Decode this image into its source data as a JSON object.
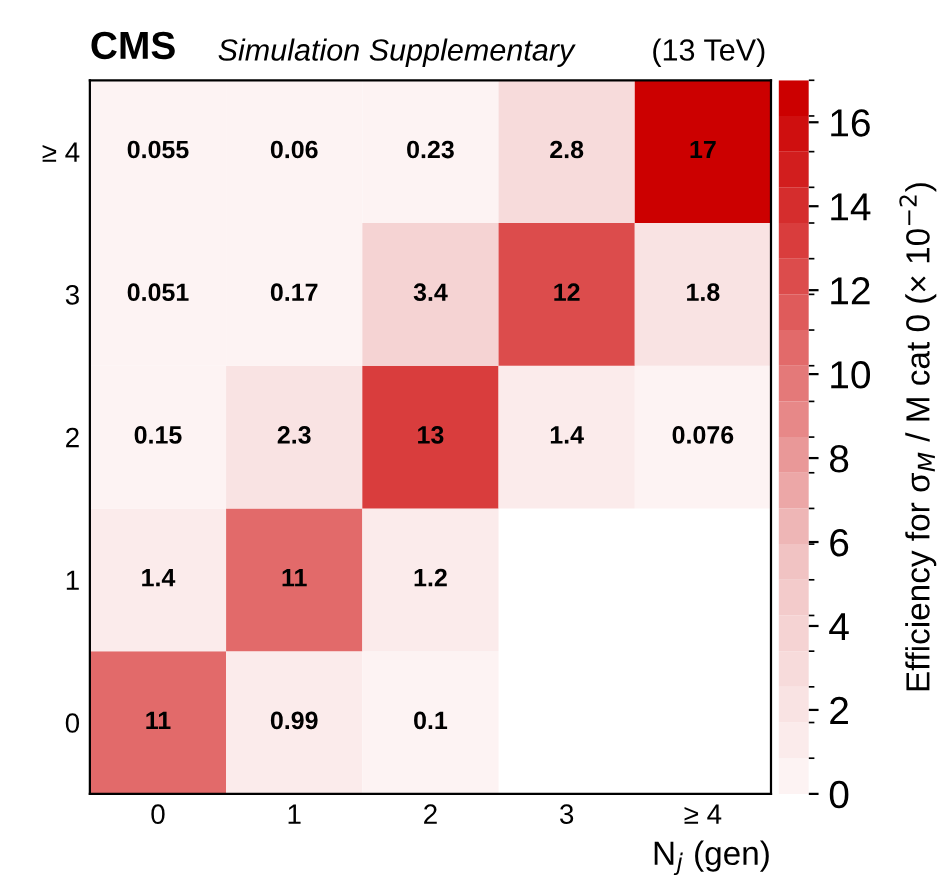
{
  "chart_data": {
    "type": "heatmap",
    "title": "CMS",
    "subtitle": "Simulation Supplementary",
    "annotations": [
      "(13 TeV)"
    ],
    "xlabel": "N$_{j}$ (gen)",
    "clabel": "Efficiency for σ$_{M}$ / M cat 0 (× 10$^{−2}$)",
    "categories": [
      "0",
      "1",
      "2",
      "3",
      "≥ 4"
    ],
    "y_categories": [
      "≥ 4",
      "3",
      "2",
      "1",
      "0"
    ],
    "cells": [
      [
        0.055,
        0.06,
        0.23,
        2.8,
        17
      ],
      [
        0.051,
        0.17,
        3.4,
        12,
        1.8
      ],
      [
        0.15,
        2.3,
        13,
        1.4,
        0.076
      ],
      [
        1.4,
        11,
        1.2,
        null,
        null
      ],
      [
        11,
        0.99,
        0.1,
        null,
        null
      ]
    ],
    "clim": [
      0,
      17
    ],
    "cticks": [
      0,
      2,
      4,
      6,
      8,
      10,
      12,
      14,
      16
    ],
    "data_labels": true,
    "grid": false
  }
}
